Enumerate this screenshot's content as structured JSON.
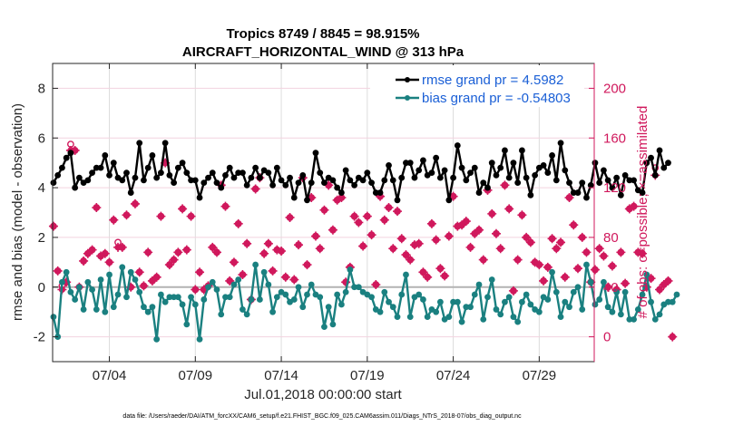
{
  "chart_data": {
    "type": "line",
    "title": "Tropics 8749 / 8845 = 98.915%",
    "subtitle": "AIRCRAFT_HORIZONTAL_WIND @ 313 hPa",
    "xlabel": "Jul.01,2018 00:00:00 start",
    "ylabel": "rmse and bias (model - observation)",
    "ylabel_right": "# of obs: o=possible; ×=assimilated",
    "footnote": "data file: /Users/raeder/DAI/ATM_forcXX/CAM6_setup/f.e21.FHIST_BGC.f09_025.CAM6assim.011/Diags_NTrS_2018-07/obs_diag_output.nc",
    "x_start_day": -0.25,
    "x_step_days": 0.25,
    "xlim_days": [
      -0.3,
      31.2
    ],
    "xticks_days": [
      3,
      8,
      13,
      18,
      23,
      28
    ],
    "xtick_labels": [
      "07/04",
      "07/09",
      "07/14",
      "07/19",
      "07/24",
      "07/29"
    ],
    "ylim": [
      -3,
      9
    ],
    "yticks": [
      -2,
      0,
      2,
      4,
      6,
      8
    ],
    "ytick_labels": [
      "-2",
      "0",
      "2",
      "4",
      "6",
      "8"
    ],
    "ylim_right": [
      -20,
      220
    ],
    "yticks_right": [
      0,
      40,
      80,
      120,
      160,
      200
    ],
    "ytick_labels_right": [
      "0",
      "40",
      "80",
      "120",
      "160",
      "200"
    ],
    "grid": true,
    "zero_line": 0,
    "legend_position": "top-right",
    "series": [
      {
        "name": "rmse",
        "legend": "rmse grand pr = 4.5982",
        "axis": "left",
        "color": "#000000",
        "values": [
          4.2,
          4.5,
          4.8,
          5.2,
          5.4,
          4.0,
          4.4,
          4.2,
          4.3,
          4.6,
          4.8,
          4.8,
          5.3,
          4.5,
          5.0,
          4.4,
          4.3,
          4.6,
          3.8,
          4.4,
          5.8,
          4.3,
          4.8,
          5.3,
          4.4,
          4.6,
          5.8,
          4.5,
          4.2,
          4.8,
          5.0,
          4.6,
          4.3,
          4.3,
          3.6,
          4.2,
          4.4,
          4.6,
          4.2,
          4.0,
          4.5,
          4.8,
          4.4,
          4.6,
          4.6,
          4.1,
          4.4,
          4.8,
          4.4,
          4.7,
          4.6,
          4.1,
          4.8,
          4.3,
          4.1,
          4.4,
          3.6,
          4.2,
          4.5,
          3.5,
          4.2,
          5.4,
          4.6,
          4.2,
          4.4,
          4.3,
          4.0,
          3.8,
          4.7,
          4.3,
          4.1,
          4.4,
          4.3,
          4.6,
          4.2,
          3.8,
          3.8,
          4.3,
          4.9,
          4.3,
          3.5,
          4.4,
          5.0,
          5.0,
          4.4,
          4.7,
          5.1,
          4.5,
          4.6,
          5.2,
          4.4,
          4.7,
          3.5,
          4.4,
          5.7,
          4.8,
          4.3,
          4.6,
          4.8,
          3.8,
          4.2,
          4.0,
          5.0,
          4.5,
          4.8,
          5.5,
          4.4,
          5.0,
          4.2,
          5.5,
          4.4,
          3.7,
          4.5,
          4.8,
          4.9,
          4.6,
          5.3,
          4.3,
          5.8,
          4.7,
          4.2,
          3.8,
          3.8,
          4.2,
          3.6,
          4.1,
          5.0,
          4.2,
          4.7,
          4.3,
          4.0,
          4.4,
          3.7,
          4.5,
          4.3,
          4.3,
          3.9,
          3.8,
          5.0,
          5.2,
          4.5,
          5.5,
          4.8,
          5.0
        ],
        "line_style": "solid",
        "marker": "circle"
      },
      {
        "name": "bias",
        "legend": "bias grand pr = -0.54803",
        "axis": "left",
        "color": "#1a8080",
        "values": [
          -1.2,
          -2.0,
          0.2,
          0.6,
          -0.2,
          -0.5,
          0.0,
          -0.9,
          0.2,
          -0.1,
          -0.9,
          0.3,
          -1.0,
          0.5,
          -0.8,
          -0.3,
          0.8,
          -0.4,
          0.6,
          0.3,
          -0.2,
          -0.8,
          -1.0,
          -0.8,
          -2.1,
          -0.3,
          -0.6,
          -0.4,
          -0.4,
          -0.4,
          -0.7,
          -1.5,
          -0.4,
          -0.7,
          -2.1,
          -0.5,
          0.0,
          0.2,
          -0.1,
          -1.1,
          -0.4,
          -0.4,
          0.1,
          0.3,
          -0.9,
          -1.1,
          -0.5,
          0.9,
          -0.5,
          0.6,
          0.1,
          -1.0,
          -0.4,
          -0.2,
          -0.3,
          -0.6,
          -0.5,
          0.0,
          -0.8,
          -0.3,
          0.1,
          -0.3,
          -0.4,
          -1.6,
          -0.8,
          -1.5,
          -0.3,
          -0.7,
          -0.2,
          0.7,
          0.0,
          0.0,
          -0.2,
          -0.3,
          -0.4,
          -0.9,
          -1.0,
          -0.2,
          -0.6,
          -0.8,
          -1.2,
          -0.3,
          0.5,
          -1.2,
          -0.4,
          -0.3,
          -0.5,
          -1.2,
          -0.9,
          -1.0,
          -0.6,
          -1.3,
          -1.2,
          -0.6,
          -0.6,
          -1.4,
          -0.8,
          -0.8,
          -0.3,
          0.1,
          -1.3,
          -0.4,
          0.3,
          -0.9,
          -1.1,
          -0.6,
          -0.4,
          -1.2,
          -1.4,
          -0.6,
          -0.3,
          -0.7,
          -0.9,
          -1.0,
          -0.4,
          -0.5,
          0.6,
          -0.2,
          -1.2,
          -0.6,
          -0.8,
          -0.2,
          0.0,
          -0.9,
          0.9,
          0.2,
          -0.7,
          -0.5,
          0.2,
          -0.8,
          -1.0,
          -0.2,
          -1.1,
          -0.2,
          -1.3,
          -1.3,
          -0.9,
          -0.3,
          0.5,
          -0.6,
          -1.3,
          -1.1,
          -0.7,
          -0.6,
          -0.6,
          -0.3
        ],
        "line_style": "solid",
        "marker": "circle"
      },
      {
        "name": "possible",
        "legend": "",
        "axis": "right",
        "color": "#d0185c",
        "marker": "o",
        "values": [
          89,
          53,
          41,
          44,
          155,
          150,
          40,
          61,
          67,
          70,
          104,
          65,
          67,
          60,
          94,
          76,
          72,
          98,
          40,
          107,
          52,
          41,
          68,
          45,
          48,
          97,
          140,
          58,
          62,
          68,
          103,
          70,
          97,
          38,
          52,
          38,
          41,
          72,
          68,
          122,
          105,
          45,
          60,
          91,
          50,
          75,
          30,
          119,
          128,
          67,
          75,
          53,
          70,
          69,
          48,
          96,
          46,
          74,
          128,
          58,
          112,
          81,
          71,
          102,
          122,
          86,
          110,
          112,
          44,
          56,
          97,
          92,
          73,
          97,
          82,
          42,
          113,
          94,
          104,
          71,
          101,
          79,
          66,
          62,
          74,
          75,
          52,
          48,
          91,
          78,
          55,
          49,
          81,
          113,
          89,
          90,
          93,
          72,
          83,
          86,
          62,
          118,
          99,
          83,
          71,
          122,
          103,
          37,
          62,
          98,
          80,
          76,
          60,
          58,
          45,
          56,
          79,
          71,
          76,
          48,
          112,
          90,
          55,
          80,
          68,
          44,
          54,
          71,
          65,
          40,
          57,
          38,
          68,
          43,
          103,
          105,
          68,
          67,
          40,
          47,
          136,
          38,
          42,
          45,
          0
        ],
        "line_style": "none"
      },
      {
        "name": "assimilated",
        "legend": "",
        "axis": "right",
        "color": "#d0185c",
        "marker": "x",
        "values": [
          89,
          53,
          38,
          44,
          150,
          150,
          40,
          61,
          67,
          70,
          104,
          65,
          67,
          60,
          94,
          72,
          72,
          98,
          40,
          107,
          52,
          41,
          68,
          45,
          48,
          97,
          140,
          58,
          62,
          68,
          103,
          70,
          97,
          38,
          52,
          38,
          41,
          72,
          68,
          122,
          105,
          45,
          60,
          91,
          50,
          75,
          30,
          119,
          128,
          67,
          75,
          53,
          70,
          69,
          48,
          96,
          46,
          74,
          128,
          58,
          112,
          81,
          71,
          102,
          122,
          86,
          110,
          112,
          44,
          56,
          97,
          92,
          73,
          97,
          82,
          42,
          113,
          94,
          104,
          71,
          101,
          79,
          66,
          62,
          74,
          75,
          52,
          48,
          91,
          78,
          55,
          49,
          81,
          113,
          89,
          90,
          93,
          72,
          83,
          86,
          62,
          118,
          99,
          83,
          71,
          122,
          103,
          37,
          62,
          98,
          80,
          76,
          60,
          58,
          45,
          56,
          79,
          71,
          76,
          48,
          112,
          90,
          55,
          80,
          68,
          44,
          54,
          71,
          65,
          40,
          57,
          38,
          68,
          43,
          103,
          105,
          68,
          67,
          40,
          47,
          130,
          38,
          42,
          45,
          0
        ],
        "line_style": "none"
      }
    ]
  }
}
